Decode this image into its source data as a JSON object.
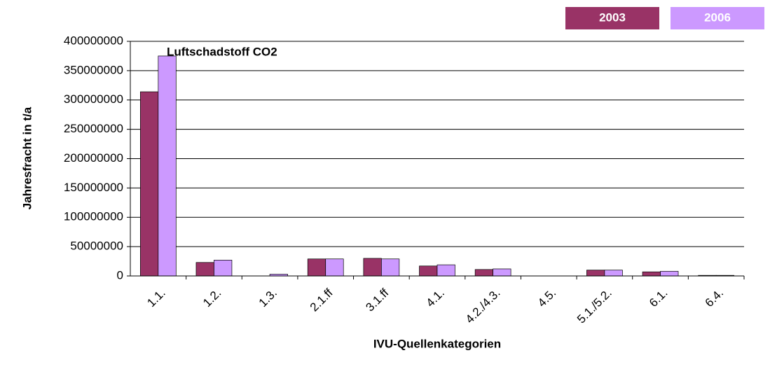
{
  "chart_data": {
    "type": "bar",
    "title": "Luftschadstoff CO2",
    "xlabel": "IVU-Quellenkategorien",
    "ylabel": "Jahresfracht  in  t/a",
    "categories": [
      "1.1.",
      "1.2.",
      "1.3.",
      "2.1.ff",
      "3.1.ff",
      "4.1.",
      "4.2./4.3.",
      "4.5.",
      "5.1./5.2.",
      "6.1.",
      "6.4."
    ],
    "series": [
      {
        "name": "2003",
        "color": "#993366",
        "values": [
          314000000,
          23000000,
          0,
          29000000,
          30000000,
          17000000,
          11000000,
          0,
          10000000,
          7000000,
          1000000
        ]
      },
      {
        "name": "2006",
        "color": "#cc99ff",
        "values": [
          375000000,
          27000000,
          3000000,
          29000000,
          29000000,
          19000000,
          12000000,
          0,
          10000000,
          8000000,
          1000000
        ]
      }
    ],
    "ylim": [
      0,
      400000000
    ],
    "yticks": [
      0,
      50000000,
      100000000,
      150000000,
      200000000,
      250000000,
      300000000,
      350000000,
      400000000
    ],
    "grid": true,
    "legend": "top-right"
  }
}
